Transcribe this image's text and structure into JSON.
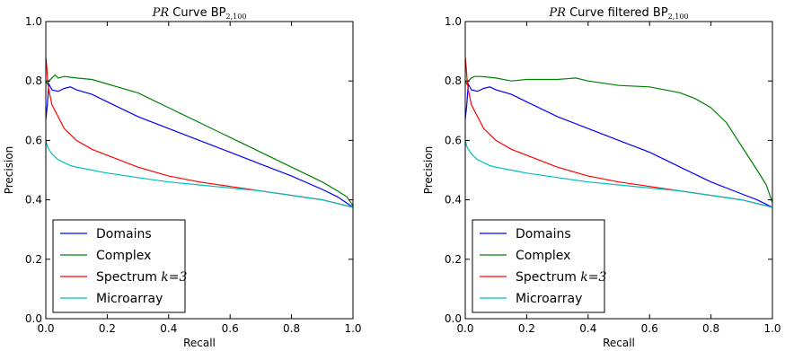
{
  "chart_data": [
    {
      "type": "line",
      "title_prefix": "PR",
      "title_main": "Curve BP",
      "title_sub": "2,100",
      "xlabel": "Recall",
      "ylabel": "Precision",
      "xlim": [
        0.0,
        1.0
      ],
      "ylim": [
        0.0,
        1.0
      ],
      "xticks": [
        "0.0",
        "0.2",
        "0.4",
        "0.6",
        "0.8",
        "1.0"
      ],
      "yticks": [
        "0.0",
        "0.2",
        "0.4",
        "0.6",
        "0.8",
        "1.0"
      ],
      "grid": false,
      "legend_position": "lower-left",
      "series": [
        {
          "name": "Domains",
          "color": "#0000ff",
          "x": [
            0.0,
            0.005,
            0.01,
            0.02,
            0.04,
            0.06,
            0.08,
            0.1,
            0.15,
            0.2,
            0.3,
            0.4,
            0.5,
            0.6,
            0.7,
            0.8,
            0.9,
            0.95,
            1.0
          ],
          "y": [
            0.67,
            0.72,
            0.79,
            0.77,
            0.765,
            0.775,
            0.78,
            0.77,
            0.755,
            0.73,
            0.68,
            0.64,
            0.6,
            0.56,
            0.52,
            0.48,
            0.435,
            0.41,
            0.375
          ]
        },
        {
          "name": "Complex",
          "color": "#008000",
          "x": [
            0.0,
            0.005,
            0.01,
            0.02,
            0.03,
            0.04,
            0.06,
            0.1,
            0.15,
            0.2,
            0.3,
            0.4,
            0.5,
            0.6,
            0.7,
            0.8,
            0.9,
            0.95,
            0.98,
            1.0
          ],
          "y": [
            0.8,
            0.79,
            0.8,
            0.81,
            0.82,
            0.81,
            0.815,
            0.81,
            0.805,
            0.79,
            0.76,
            0.71,
            0.66,
            0.61,
            0.56,
            0.51,
            0.46,
            0.43,
            0.41,
            0.38
          ]
        },
        {
          "name": "Spectrum k=3",
          "color": "#ff0000",
          "x": [
            0.0,
            0.003,
            0.006,
            0.01,
            0.02,
            0.04,
            0.06,
            0.1,
            0.15,
            0.2,
            0.3,
            0.4,
            0.5,
            0.6,
            0.7,
            0.8,
            0.9,
            1.0
          ],
          "y": [
            0.88,
            0.85,
            0.8,
            0.77,
            0.72,
            0.68,
            0.64,
            0.6,
            0.57,
            0.55,
            0.51,
            0.48,
            0.46,
            0.445,
            0.43,
            0.415,
            0.4,
            0.375
          ]
        },
        {
          "name": "Microarray",
          "color": "#00bfbf",
          "x": [
            0.0,
            0.005,
            0.01,
            0.02,
            0.04,
            0.06,
            0.08,
            0.1,
            0.15,
            0.2,
            0.3,
            0.4,
            0.5,
            0.6,
            0.7,
            0.8,
            0.9,
            1.0
          ],
          "y": [
            0.6,
            0.58,
            0.57,
            0.555,
            0.535,
            0.525,
            0.515,
            0.51,
            0.5,
            0.49,
            0.475,
            0.46,
            0.45,
            0.44,
            0.43,
            0.415,
            0.4,
            0.375
          ]
        }
      ]
    },
    {
      "type": "line",
      "title_prefix": "PR",
      "title_main": "Curve filtered BP",
      "title_sub": "2,100",
      "xlabel": "Recall",
      "ylabel": "Precision",
      "xlim": [
        0.0,
        1.0
      ],
      "ylim": [
        0.0,
        1.0
      ],
      "xticks": [
        "0.0",
        "0.2",
        "0.4",
        "0.6",
        "0.8",
        "1.0"
      ],
      "yticks": [
        "0.0",
        "0.2",
        "0.4",
        "0.6",
        "0.8",
        "1.0"
      ],
      "grid": false,
      "legend_position": "lower-left",
      "series": [
        {
          "name": "Domains",
          "color": "#0000ff",
          "x": [
            0.0,
            0.005,
            0.01,
            0.02,
            0.04,
            0.06,
            0.08,
            0.1,
            0.15,
            0.2,
            0.3,
            0.4,
            0.5,
            0.6,
            0.7,
            0.8,
            0.9,
            0.95,
            1.0
          ],
          "y": [
            0.67,
            0.72,
            0.79,
            0.77,
            0.765,
            0.775,
            0.78,
            0.77,
            0.755,
            0.73,
            0.68,
            0.64,
            0.6,
            0.56,
            0.51,
            0.46,
            0.42,
            0.4,
            0.375
          ]
        },
        {
          "name": "Complex",
          "color": "#008000",
          "x": [
            0.0,
            0.005,
            0.01,
            0.02,
            0.03,
            0.05,
            0.1,
            0.15,
            0.2,
            0.3,
            0.36,
            0.4,
            0.5,
            0.6,
            0.7,
            0.75,
            0.8,
            0.85,
            0.9,
            0.95,
            0.98,
            1.0
          ],
          "y": [
            0.8,
            0.79,
            0.8,
            0.81,
            0.815,
            0.815,
            0.81,
            0.8,
            0.805,
            0.805,
            0.81,
            0.8,
            0.785,
            0.78,
            0.76,
            0.74,
            0.71,
            0.66,
            0.58,
            0.5,
            0.45,
            0.39
          ]
        },
        {
          "name": "Spectrum k=3",
          "color": "#ff0000",
          "x": [
            0.0,
            0.003,
            0.006,
            0.01,
            0.02,
            0.04,
            0.06,
            0.1,
            0.15,
            0.2,
            0.3,
            0.4,
            0.5,
            0.6,
            0.7,
            0.8,
            0.9,
            1.0
          ],
          "y": [
            0.88,
            0.85,
            0.8,
            0.77,
            0.72,
            0.68,
            0.64,
            0.6,
            0.57,
            0.55,
            0.51,
            0.48,
            0.46,
            0.445,
            0.43,
            0.415,
            0.4,
            0.375
          ]
        },
        {
          "name": "Microarray",
          "color": "#00bfbf",
          "x": [
            0.0,
            0.005,
            0.01,
            0.02,
            0.04,
            0.06,
            0.08,
            0.1,
            0.15,
            0.2,
            0.3,
            0.4,
            0.5,
            0.6,
            0.7,
            0.8,
            0.9,
            1.0
          ],
          "y": [
            0.6,
            0.58,
            0.57,
            0.555,
            0.535,
            0.525,
            0.515,
            0.51,
            0.5,
            0.49,
            0.475,
            0.46,
            0.45,
            0.44,
            0.43,
            0.415,
            0.4,
            0.375
          ]
        }
      ]
    }
  ],
  "legend_math_k": "k",
  "legend_math_eq": "=3"
}
